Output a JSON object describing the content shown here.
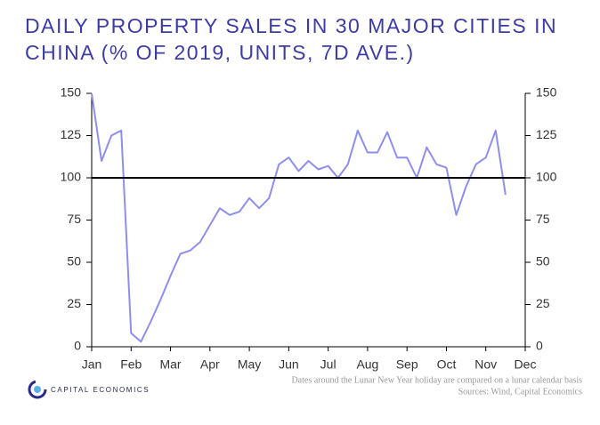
{
  "chart_data": {
    "type": "line",
    "title": "DAILY PROPERTY SALES IN 30 MAJOR CITIES IN CHINA (% OF 2019, UNITS, 7D AVE.)",
    "categories": [
      "Jan",
      null,
      null,
      null,
      "Feb",
      null,
      null,
      null,
      "Mar",
      null,
      null,
      null,
      "Apr",
      null,
      null,
      null,
      "May",
      null,
      null,
      null,
      "Jun",
      null,
      null,
      null,
      "Jul",
      null,
      null,
      null,
      "Aug",
      null,
      null,
      null,
      "Sep",
      null,
      null,
      null,
      "Oct",
      null,
      null,
      null,
      "Nov",
      null,
      null,
      null,
      "Dec"
    ],
    "series": [
      {
        "name": "Sales",
        "color": "#8c8ff0",
        "values": [
          150,
          110,
          125,
          128,
          8,
          3,
          15,
          28,
          42,
          55,
          57,
          62,
          72,
          82,
          78,
          80,
          88,
          82,
          88,
          108,
          112,
          104,
          110,
          105,
          107,
          100,
          108,
          128,
          115,
          115,
          127,
          112,
          112,
          100,
          118,
          108,
          106,
          78,
          95,
          108,
          112,
          128,
          90,
          null,
          null
        ]
      }
    ],
    "ylim": [
      0,
      150
    ],
    "yticks": [
      0,
      25,
      50,
      75,
      100,
      125,
      150
    ],
    "y2lim": [
      0,
      150
    ],
    "y2ticks": [
      0,
      25,
      50,
      75,
      100,
      125,
      150
    ],
    "reference_line": 100,
    "notes": [
      "Dates around the Lunar New Year holiday are compared on a lunar calendar basis",
      "Sources: Wind, Capital Economics"
    ],
    "logo": "CAPITAL ECONOMICS"
  }
}
